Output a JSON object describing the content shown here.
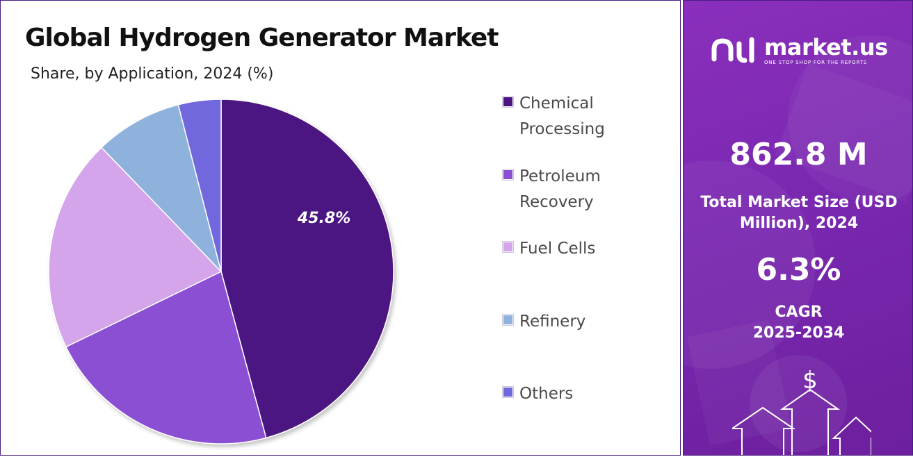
{
  "title": "Global Hydrogen Generator Market",
  "subtitle": "Share, by Application, 2024 (%)",
  "chart_data": {
    "type": "pie",
    "title": "Global Hydrogen Generator Market",
    "subtitle": "Share, by Application, 2024 (%)",
    "categories": [
      "Chemical Processing",
      "Petroleum Recovery",
      "Fuel Cells",
      "Refinery",
      "Others"
    ],
    "values": [
      45.8,
      22.0,
      20.0,
      8.2,
      4.0
    ],
    "colors": [
      "#4b1482",
      "#8b4fd4",
      "#d4a5ea",
      "#8fb2dd",
      "#7067dc"
    ],
    "data_labels": [
      "45.8%",
      "",
      "",
      "",
      ""
    ],
    "legend_position": "right"
  },
  "legend": [
    {
      "label": "Chemical Processing",
      "color": "#4b1482"
    },
    {
      "label": "Petroleum Recovery",
      "color": "#8b4fd4"
    },
    {
      "label": "Fuel Cells",
      "color": "#d4a5ea"
    },
    {
      "label": "Refinery",
      "color": "#8fb2dd"
    },
    {
      "label": "Others",
      "color": "#7067dc"
    }
  ],
  "sidebar": {
    "brand_name": "market.us",
    "brand_tagline": "ONE STOP SHOP FOR THE REPORTS",
    "market_size": "862.8 M",
    "market_size_label": "Total Market Size (USD Million), 2024",
    "cagr": "6.3%",
    "cagr_label": "CAGR",
    "cagr_period": "2025-2034",
    "currency_symbol": "$"
  }
}
